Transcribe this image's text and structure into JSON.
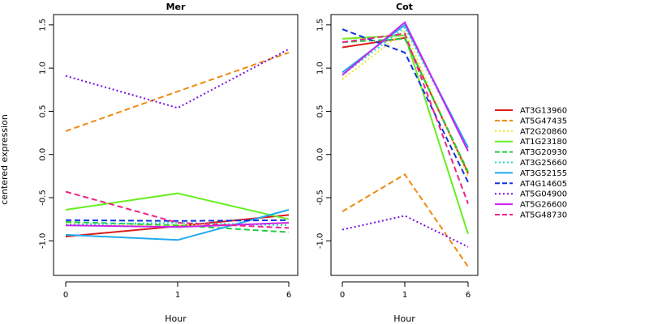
{
  "chart_data": {
    "type": "line",
    "ylabel": "centered expression",
    "xlabel": "Hour",
    "x_ticks": [
      "0",
      "1",
      "6"
    ],
    "y_ticks": [
      -1.0,
      -0.5,
      0.0,
      0.5,
      1.0,
      1.5
    ],
    "ylim": [
      -1.4,
      1.62
    ],
    "series_styles": [
      {
        "name": "AT3G13960",
        "color": "#dd1c1c",
        "dash": "solid"
      },
      {
        "name": "AT5G47435",
        "color": "#ee8a10",
        "dash": "dashed"
      },
      {
        "name": "AT2G20860",
        "color": "#eded1c",
        "dash": "dotted"
      },
      {
        "name": "AT1G23180",
        "color": "#66ee22",
        "dash": "solid"
      },
      {
        "name": "AT3G20930",
        "color": "#22cc44",
        "dash": "dashed"
      },
      {
        "name": "AT3G25660",
        "color": "#22ddbb",
        "dash": "dotted"
      },
      {
        "name": "AT3G52155",
        "color": "#22aaee",
        "dash": "solid"
      },
      {
        "name": "AT4G14605",
        "color": "#1133dd",
        "dash": "dashed"
      },
      {
        "name": "AT5G04900",
        "color": "#7711dd",
        "dash": "dotted"
      },
      {
        "name": "AT5G26600",
        "color": "#cc22ee",
        "dash": "solid"
      },
      {
        "name": "AT5G48730",
        "color": "#ee2288",
        "dash": "dashed"
      }
    ],
    "panels": [
      {
        "title": "Mer",
        "series": [
          {
            "values": [
              -0.95,
              -0.83,
              -0.7
            ]
          },
          {
            "values": [
              0.27,
              0.73,
              1.18
            ]
          },
          {
            "values": [
              -0.8,
              -0.82,
              -0.8
            ]
          },
          {
            "values": [
              -0.64,
              -0.45,
              -0.75
            ]
          },
          {
            "values": [
              -0.78,
              -0.82,
              -0.9
            ]
          },
          {
            "values": [
              -0.81,
              -0.79,
              -0.82
            ]
          },
          {
            "values": [
              -0.93,
              -0.99,
              -0.64
            ]
          },
          {
            "values": [
              -0.76,
              -0.77,
              -0.76
            ]
          },
          {
            "values": [
              0.91,
              0.54,
              1.22
            ]
          },
          {
            "values": [
              -0.82,
              -0.84,
              -0.79
            ]
          },
          {
            "values": [
              -0.43,
              -0.79,
              -0.85
            ]
          }
        ]
      },
      {
        "title": "Cot",
        "series": [
          {
            "values": [
              1.24,
              1.35,
              -0.22
            ]
          },
          {
            "values": [
              -0.66,
              -0.23,
              -1.3
            ]
          },
          {
            "values": [
              0.87,
              1.43,
              -0.25
            ]
          },
          {
            "values": [
              1.34,
              1.38,
              -0.92
            ]
          },
          {
            "values": [
              1.3,
              1.34,
              -0.2
            ]
          },
          {
            "values": [
              0.92,
              1.47,
              0.07
            ]
          },
          {
            "values": [
              0.95,
              1.5,
              0.08
            ]
          },
          {
            "values": [
              1.45,
              1.18,
              -0.32
            ]
          },
          {
            "values": [
              -0.87,
              -0.71,
              -1.07
            ]
          },
          {
            "values": [
              0.92,
              1.53,
              0.04
            ]
          },
          {
            "values": [
              1.3,
              1.4,
              -0.57
            ]
          }
        ]
      }
    ]
  }
}
